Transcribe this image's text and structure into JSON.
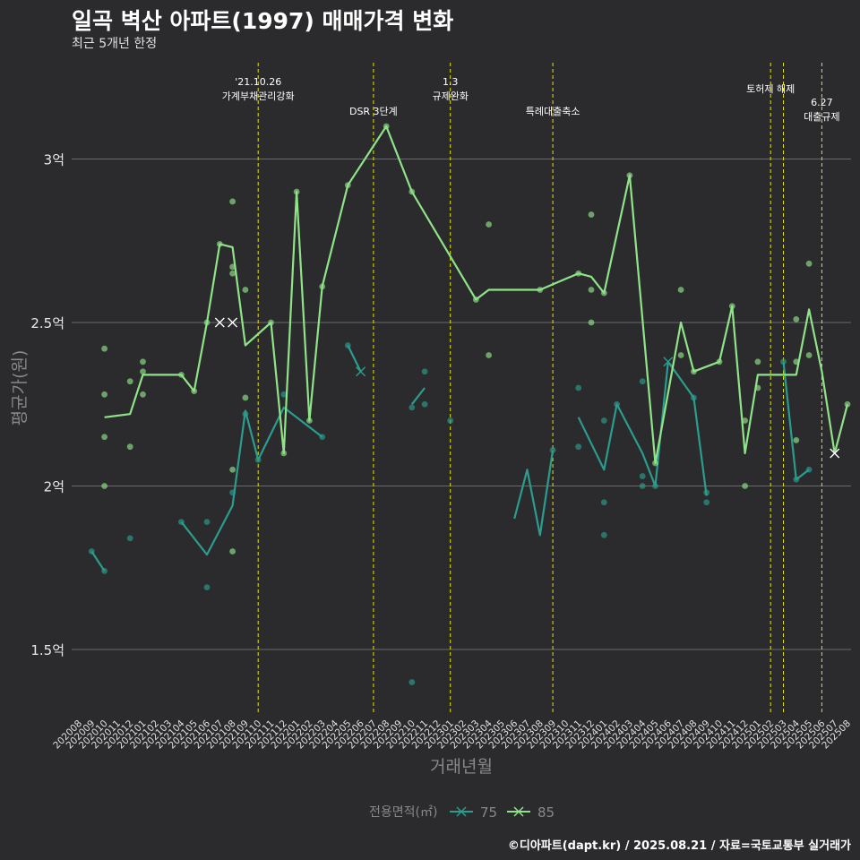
{
  "header": {
    "title": "일곡 벽산 아파트(1997) 매매가격 변화",
    "subtitle": "최근 5개년 한정"
  },
  "footer": {
    "credit": "©디아파트(dapt.kr) / 2025.08.21 / 자료=국토교통부 실거래가"
  },
  "colors": {
    "series_75": "#2a9d8f",
    "series_85": "#8fe388",
    "event_line": "#e6e600",
    "background": "#2b2b2d",
    "grid": "#6a6a6a"
  },
  "chart_data": {
    "type": "line",
    "title": "일곡 벽산 아파트(1997) 매매가격 변화",
    "xlabel": "거래년월",
    "ylabel": "평균가(원)",
    "y_unit": "억",
    "ylim": [
      1.3,
      3.3
    ],
    "y_ticks": [
      1.5,
      2,
      2.5,
      3
    ],
    "y_tick_labels": [
      "1.5억",
      "2억",
      "2.5억",
      "3억"
    ],
    "legend": {
      "title": "전용면적(㎡)",
      "position": "bottom"
    },
    "categories": [
      "202008",
      "202009",
      "202010",
      "202011",
      "202012",
      "202101",
      "202102",
      "202103",
      "202104",
      "202105",
      "202106",
      "202107",
      "202108",
      "202109",
      "202110",
      "202111",
      "202112",
      "202201",
      "202202",
      "202203",
      "202204",
      "202205",
      "202206",
      "202207",
      "202208",
      "202209",
      "202210",
      "202211",
      "202212",
      "202301",
      "202302",
      "202303",
      "202304",
      "202305",
      "202306",
      "202307",
      "202308",
      "202309",
      "202310",
      "202311",
      "202312",
      "202401",
      "202402",
      "202403",
      "202404",
      "202405",
      "202406",
      "202407",
      "202408",
      "202409",
      "202410",
      "202411",
      "202412",
      "202501",
      "202502",
      "202503",
      "202504",
      "202505",
      "202506",
      "202507",
      "202508"
    ],
    "series": [
      {
        "name": "75",
        "lines": [
          [
            [
              "202009",
              1.8
            ],
            [
              "202010",
              1.74
            ]
          ],
          [
            [
              "202104",
              1.89
            ],
            [
              "202106",
              1.79
            ],
            [
              "202108",
              1.94
            ],
            [
              "202109",
              2.23
            ],
            [
              "202110",
              2.08
            ],
            [
              "202112",
              2.24
            ],
            [
              "202203",
              2.15
            ]
          ],
          [
            [
              "202205",
              2.43
            ],
            [
              "202206",
              2.35
            ]
          ],
          [
            [
              "202210",
              2.25
            ],
            [
              "202211",
              2.3
            ]
          ],
          [
            [
              "202306",
              1.9
            ],
            [
              "202307",
              2.05
            ],
            [
              "202308",
              1.85
            ],
            [
              "202309",
              2.11
            ]
          ],
          [
            [
              "202311",
              2.21
            ],
            [
              "202401",
              2.05
            ],
            [
              "202402",
              2.25
            ],
            [
              "202404",
              2.1
            ],
            [
              "202405",
              2.0
            ],
            [
              "202406",
              2.38
            ],
            [
              "202408",
              2.27
            ],
            [
              "202409",
              1.97
            ]
          ],
          [
            [
              "202503",
              2.38
            ],
            [
              "202504",
              2.02
            ],
            [
              "202505",
              2.05
            ]
          ]
        ],
        "points": [
          [
            "202009",
            1.8
          ],
          [
            "202010",
            1.74
          ],
          [
            "202012",
            1.84
          ],
          [
            "202104",
            1.89
          ],
          [
            "202106",
            1.89
          ],
          [
            "202106",
            1.69
          ],
          [
            "202108",
            1.98
          ],
          [
            "202109",
            2.22
          ],
          [
            "202110",
            2.08
          ],
          [
            "202112",
            2.28
          ],
          [
            "202203",
            2.15
          ],
          [
            "202205",
            2.43
          ],
          [
            "202210",
            1.4
          ],
          [
            "202210",
            2.24
          ],
          [
            "202211",
            2.25
          ],
          [
            "202211",
            2.35
          ],
          [
            "202301",
            2.2
          ],
          [
            "202309",
            2.11
          ],
          [
            "202311",
            2.3
          ],
          [
            "202311",
            2.12
          ],
          [
            "202401",
            2.2
          ],
          [
            "202401",
            1.95
          ],
          [
            "202401",
            1.85
          ],
          [
            "202402",
            2.25
          ],
          [
            "202404",
            2.32
          ],
          [
            "202404",
            2.03
          ],
          [
            "202404",
            2.0
          ],
          [
            "202405",
            2.0
          ],
          [
            "202408",
            2.27
          ],
          [
            "202409",
            1.95
          ],
          [
            "202409",
            1.98
          ],
          [
            "202503",
            2.38
          ],
          [
            "202504",
            2.02
          ],
          [
            "202505",
            2.05
          ]
        ],
        "cross_markers": [
          [
            "202206",
            2.35
          ],
          [
            "202406",
            2.38
          ]
        ]
      },
      {
        "name": "85",
        "lines": [
          [
            [
              "202010",
              2.21
            ],
            [
              "202012",
              2.22
            ],
            [
              "202101",
              2.34
            ],
            [
              "202104",
              2.34
            ],
            [
              "202105",
              2.29
            ],
            [
              "202106",
              2.5
            ],
            [
              "202107",
              2.74
            ],
            [
              "202108",
              2.73
            ],
            [
              "202109",
              2.43
            ],
            [
              "202111",
              2.5
            ],
            [
              "202112",
              2.1
            ],
            [
              "202201",
              2.9
            ],
            [
              "202202",
              2.2
            ],
            [
              "202203",
              2.61
            ],
            [
              "202205",
              2.92
            ],
            [
              "202208",
              3.1
            ],
            [
              "202210",
              2.9
            ],
            [
              "202303",
              2.57
            ],
            [
              "202304",
              2.6
            ],
            [
              "202308",
              2.6
            ],
            [
              "202311",
              2.65
            ],
            [
              "202312",
              2.64
            ],
            [
              "202401",
              2.59
            ],
            [
              "202403",
              2.95
            ],
            [
              "202405",
              2.07
            ],
            [
              "202407",
              2.5
            ],
            [
              "202408",
              2.35
            ],
            [
              "202410",
              2.38
            ],
            [
              "202411",
              2.55
            ],
            [
              "202412",
              2.1
            ],
            [
              "202501",
              2.34
            ],
            [
              "202504",
              2.34
            ],
            [
              "202505",
              2.54
            ],
            [
              "202506",
              2.35
            ],
            [
              "202507",
              2.1
            ],
            [
              "202508",
              2.25
            ]
          ]
        ],
        "points": [
          [
            "202010",
            2.42
          ],
          [
            "202010",
            2.28
          ],
          [
            "202010",
            2.15
          ],
          [
            "202010",
            2.0
          ],
          [
            "202012",
            2.32
          ],
          [
            "202012",
            2.12
          ],
          [
            "202101",
            2.38
          ],
          [
            "202101",
            2.35
          ],
          [
            "202101",
            2.28
          ],
          [
            "202104",
            2.34
          ],
          [
            "202105",
            2.29
          ],
          [
            "202106",
            2.5
          ],
          [
            "202107",
            2.74
          ],
          [
            "202108",
            2.87
          ],
          [
            "202108",
            2.67
          ],
          [
            "202108",
            2.65
          ],
          [
            "202108",
            2.05
          ],
          [
            "202108",
            1.8
          ],
          [
            "202109",
            2.6
          ],
          [
            "202109",
            2.27
          ],
          [
            "202111",
            2.5
          ],
          [
            "202112",
            2.1
          ],
          [
            "202201",
            2.9
          ],
          [
            "202202",
            2.2
          ],
          [
            "202203",
            2.61
          ],
          [
            "202205",
            2.92
          ],
          [
            "202208",
            3.1
          ],
          [
            "202210",
            2.9
          ],
          [
            "202303",
            2.57
          ],
          [
            "202304",
            2.8
          ],
          [
            "202304",
            2.4
          ],
          [
            "202308",
            2.6
          ],
          [
            "202311",
            2.65
          ],
          [
            "202312",
            2.83
          ],
          [
            "202312",
            2.6
          ],
          [
            "202312",
            2.5
          ],
          [
            "202401",
            2.59
          ],
          [
            "202403",
            2.95
          ],
          [
            "202405",
            2.07
          ],
          [
            "202407",
            2.6
          ],
          [
            "202407",
            2.4
          ],
          [
            "202408",
            2.35
          ],
          [
            "202410",
            2.38
          ],
          [
            "202411",
            2.55
          ],
          [
            "202412",
            2.2
          ],
          [
            "202412",
            2.0
          ],
          [
            "202501",
            2.38
          ],
          [
            "202501",
            2.3
          ],
          [
            "202504",
            2.51
          ],
          [
            "202504",
            2.38
          ],
          [
            "202504",
            2.14
          ],
          [
            "202505",
            2.68
          ],
          [
            "202505",
            2.4
          ],
          [
            "202508",
            2.25
          ]
        ],
        "cross_markers": [
          [
            "202107",
            2.5
          ],
          [
            "202108",
            2.5
          ],
          [
            "202507",
            2.1
          ]
        ]
      }
    ],
    "events": [
      {
        "x": "202110",
        "label": "'21.10.26\n가계부채관리강화"
      },
      {
        "x": "202207",
        "label": "DSR 3단계"
      },
      {
        "x": "202301",
        "label": "1.3\n규제완화"
      },
      {
        "x": "202309",
        "label": "특례대출축소"
      },
      {
        "x": "202502",
        "label": "토허제 해제"
      },
      {
        "x": "202503",
        "label": ""
      },
      {
        "x": "202506",
        "label": "6.27\n대출규제"
      }
    ]
  }
}
